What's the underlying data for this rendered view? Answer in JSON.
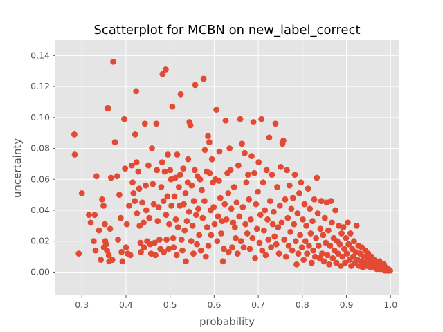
{
  "chart_data": {
    "type": "scatter",
    "title": "Scatterplot for MCBN on new_label_correct",
    "xlabel": "probability",
    "ylabel": "uncertainty",
    "xlim": [
      0.24,
      1.02
    ],
    "ylim": [
      -0.015,
      0.15
    ],
    "xticks": [
      "0.3",
      "0.4",
      "0.5",
      "0.6",
      "0.7",
      "0.8",
      "0.9",
      "1.0"
    ],
    "yticks": [
      "0.00",
      "0.02",
      "0.04",
      "0.06",
      "0.08",
      "0.10",
      "0.12",
      "0.14"
    ],
    "grid": true,
    "background_color": "#e5e5e5",
    "marker_color": "#e24a33",
    "points": [
      [
        0.283,
        0.089
      ],
      [
        0.284,
        0.076
      ],
      [
        0.293,
        0.012
      ],
      [
        0.3,
        0.051
      ],
      [
        0.316,
        0.037
      ],
      [
        0.32,
        0.032
      ],
      [
        0.327,
        0.02
      ],
      [
        0.329,
        0.037
      ],
      [
        0.331,
        0.014
      ],
      [
        0.333,
        0.062
      ],
      [
        0.339,
        0.027
      ],
      [
        0.343,
        0.008
      ],
      [
        0.346,
        0.047
      ],
      [
        0.349,
        0.043
      ],
      [
        0.35,
        0.016
      ],
      [
        0.352,
        0.031
      ],
      [
        0.353,
        0.02
      ],
      [
        0.355,
        0.018
      ],
      [
        0.357,
        0.014
      ],
      [
        0.358,
        0.106
      ],
      [
        0.36,
        0.106
      ],
      [
        0.361,
        0.011
      ],
      [
        0.362,
        0.007
      ],
      [
        0.364,
        0.028
      ],
      [
        0.366,
        0.061
      ],
      [
        0.369,
        0.008
      ],
      [
        0.371,
        0.136
      ],
      [
        0.375,
        0.084
      ],
      [
        0.38,
        0.062
      ],
      [
        0.382,
        0.021
      ],
      [
        0.385,
        0.05
      ],
      [
        0.388,
        0.035
      ],
      [
        0.39,
        0.013
      ],
      [
        0.392,
        0.007
      ],
      [
        0.396,
        0.099
      ],
      [
        0.398,
        0.067
      ],
      [
        0.4,
        0.016
      ],
      [
        0.402,
        0.031
      ],
      [
        0.404,
        0.012
      ],
      [
        0.407,
        0.043
      ],
      [
        0.41,
        0.011
      ],
      [
        0.413,
        0.069
      ],
      [
        0.415,
        0.058
      ],
      [
        0.417,
        0.051
      ],
      [
        0.42,
        0.046
      ],
      [
        0.421,
        0.089
      ],
      [
        0.423,
        0.117
      ],
      [
        0.424,
        0.071
      ],
      [
        0.425,
        0.038
      ],
      [
        0.428,
        0.065
      ],
      [
        0.43,
        0.054
      ],
      [
        0.431,
        0.03
      ],
      [
        0.433,
        0.019
      ],
      [
        0.434,
        0.013
      ],
      [
        0.437,
        0.045
      ],
      [
        0.44,
        0.032
      ],
      [
        0.441,
        0.016
      ],
      [
        0.443,
        0.096
      ],
      [
        0.445,
        0.056
      ],
      [
        0.446,
        0.04
      ],
      [
        0.448,
        0.02
      ],
      [
        0.451,
        0.069
      ],
      [
        0.453,
        0.035
      ],
      [
        0.455,
        0.018
      ],
      [
        0.457,
        0.012
      ],
      [
        0.459,
        0.08
      ],
      [
        0.461,
        0.057
      ],
      [
        0.463,
        0.044
      ],
      [
        0.465,
        0.019
      ],
      [
        0.467,
        0.011
      ],
      [
        0.469,
        0.096
      ],
      [
        0.47,
        0.066
      ],
      [
        0.472,
        0.033
      ],
      [
        0.474,
        0.042
      ],
      [
        0.476,
        0.021
      ],
      [
        0.478,
        0.015
      ],
      [
        0.48,
        0.055
      ],
      [
        0.482,
        0.071
      ],
      [
        0.483,
        0.128
      ],
      [
        0.485,
        0.046
      ],
      [
        0.486,
        0.013
      ],
      [
        0.488,
        0.065
      ],
      [
        0.49,
        0.131
      ],
      [
        0.491,
        0.037
      ],
      [
        0.492,
        0.021
      ],
      [
        0.494,
        0.049
      ],
      [
        0.495,
        0.076
      ],
      [
        0.497,
        0.015
      ],
      [
        0.498,
        0.031
      ],
      [
        0.5,
        0.066
      ],
      [
        0.502,
        0.06
      ],
      [
        0.503,
        0.043
      ],
      [
        0.505,
        0.107
      ],
      [
        0.507,
        0.022
      ],
      [
        0.508,
        0.016
      ],
      [
        0.51,
        0.049
      ],
      [
        0.512,
        0.061
      ],
      [
        0.513,
        0.034
      ],
      [
        0.515,
        0.011
      ],
      [
        0.516,
        0.076
      ],
      [
        0.518,
        0.029
      ],
      [
        0.52,
        0.055
      ],
      [
        0.522,
        0.043
      ],
      [
        0.523,
        0.063
      ],
      [
        0.524,
        0.115
      ],
      [
        0.526,
        0.021
      ],
      [
        0.528,
        0.014
      ],
      [
        0.53,
        0.067
      ],
      [
        0.531,
        0.044
      ],
      [
        0.533,
        0.027
      ],
      [
        0.535,
        0.051
      ],
      [
        0.536,
        0.007
      ],
      [
        0.538,
        0.033
      ],
      [
        0.54,
        0.058
      ],
      [
        0.541,
        0.073
      ],
      [
        0.543,
        0.039
      ],
      [
        0.544,
        0.097
      ],
      [
        0.546,
        0.095
      ],
      [
        0.548,
        0.02
      ],
      [
        0.549,
        0.056
      ],
      [
        0.551,
        0.03
      ],
      [
        0.553,
        0.012
      ],
      [
        0.554,
        0.046
      ],
      [
        0.556,
        0.066
      ],
      [
        0.557,
        0.121
      ],
      [
        0.559,
        0.037
      ],
      [
        0.561,
        0.018
      ],
      [
        0.562,
        0.062
      ],
      [
        0.564,
        0.041
      ],
      [
        0.566,
        0.024
      ],
      [
        0.568,
        0.06
      ],
      [
        0.57,
        0.014
      ],
      [
        0.572,
        0.053
      ],
      [
        0.574,
        0.035
      ],
      [
        0.576,
        0.125
      ],
      [
        0.578,
        0.046
      ],
      [
        0.579,
        0.079
      ],
      [
        0.581,
        0.01
      ],
      [
        0.583,
        0.065
      ],
      [
        0.584,
        0.029
      ],
      [
        0.586,
        0.088
      ],
      [
        0.587,
        0.017
      ],
      [
        0.589,
        0.084
      ],
      [
        0.59,
        0.064
      ],
      [
        0.592,
        0.04
      ],
      [
        0.593,
        0.024
      ],
      [
        0.595,
        0.073
      ],
      [
        0.597,
        0.058
      ],
      [
        0.599,
        0.042
      ],
      [
        0.601,
        0.031
      ],
      [
        0.603,
        0.06
      ],
      [
        0.605,
        0.105
      ],
      [
        0.607,
        0.02
      ],
      [
        0.609,
        0.036
      ],
      [
        0.611,
        0.059
      ],
      [
        0.612,
        0.078
      ],
      [
        0.614,
        0.048
      ],
      [
        0.616,
        0.025
      ],
      [
        0.618,
        0.033
      ],
      [
        0.62,
        0.007
      ],
      [
        0.622,
        0.015
      ],
      [
        0.624,
        0.044
      ],
      [
        0.626,
        0.098
      ],
      [
        0.628,
        0.034
      ],
      [
        0.63,
        0.064
      ],
      [
        0.632,
        0.051
      ],
      [
        0.633,
        0.013
      ],
      [
        0.635,
        0.08
      ],
      [
        0.637,
        0.066
      ],
      [
        0.639,
        0.041
      ],
      [
        0.641,
        0.016
      ],
      [
        0.643,
        0.032
      ],
      [
        0.645,
        0.055
      ],
      [
        0.647,
        0.029
      ],
      [
        0.649,
        0.022
      ],
      [
        0.651,
        0.045
      ],
      [
        0.653,
        0.012
      ],
      [
        0.655,
        0.069
      ],
      [
        0.657,
        0.036
      ],
      [
        0.659,
        0.099
      ],
      [
        0.661,
        0.02
      ],
      [
        0.663,
        0.083
      ],
      [
        0.665,
        0.042
      ],
      [
        0.667,
        0.016
      ],
      [
        0.669,
        0.077
      ],
      [
        0.671,
        0.031
      ],
      [
        0.673,
        0.058
      ],
      [
        0.675,
        0.025
      ],
      [
        0.677,
        0.063
      ],
      [
        0.679,
        0.047
      ],
      [
        0.681,
        0.015
      ],
      [
        0.683,
        0.034
      ],
      [
        0.685,
        0.075
      ],
      [
        0.687,
        0.022
      ],
      [
        0.689,
        0.097
      ],
      [
        0.691,
        0.064
      ],
      [
        0.693,
        0.009
      ],
      [
        0.695,
        0.044
      ],
      [
        0.697,
        0.028
      ],
      [
        0.699,
        0.052
      ],
      [
        0.701,
        0.071
      ],
      [
        0.703,
        0.019
      ],
      [
        0.705,
        0.037
      ],
      [
        0.707,
        0.099
      ],
      [
        0.709,
        0.014
      ],
      [
        0.711,
        0.058
      ],
      [
        0.713,
        0.027
      ],
      [
        0.715,
        0.04
      ],
      [
        0.717,
        0.011
      ],
      [
        0.719,
        0.066
      ],
      [
        0.721,
        0.034
      ],
      [
        0.723,
        0.021
      ],
      [
        0.725,
        0.087
      ],
      [
        0.727,
        0.046
      ],
      [
        0.729,
        0.016
      ],
      [
        0.731,
        0.063
      ],
      [
        0.733,
        0.031
      ],
      [
        0.735,
        0.039
      ],
      [
        0.737,
        0.023
      ],
      [
        0.739,
        0.096
      ],
      [
        0.741,
        0.018
      ],
      [
        0.743,
        0.055
      ],
      [
        0.745,
        0.029
      ],
      [
        0.747,
        0.012
      ],
      [
        0.749,
        0.043
      ],
      [
        0.751,
        0.068
      ],
      [
        0.753,
        0.032
      ],
      [
        0.755,
        0.083
      ],
      [
        0.757,
        0.085
      ],
      [
        0.759,
        0.021
      ],
      [
        0.761,
        0.047
      ],
      [
        0.763,
        0.01
      ],
      [
        0.765,
        0.066
      ],
      [
        0.767,
        0.035
      ],
      [
        0.769,
        0.017
      ],
      [
        0.771,
        0.056
      ],
      [
        0.773,
        0.026
      ],
      [
        0.775,
        0.041
      ],
      [
        0.777,
        0.014
      ],
      [
        0.779,
        0.048
      ],
      [
        0.781,
        0.031
      ],
      [
        0.783,
        0.063
      ],
      [
        0.785,
        0.02
      ],
      [
        0.787,
        0.005
      ],
      [
        0.789,
        0.038
      ],
      [
        0.791,
        0.012
      ],
      [
        0.793,
        0.051
      ],
      [
        0.795,
        0.024
      ],
      [
        0.797,
        0.058
      ],
      [
        0.799,
        0.016
      ],
      [
        0.801,
        0.034
      ],
      [
        0.803,
        0.008
      ],
      [
        0.805,
        0.044
      ],
      [
        0.807,
        0.02
      ],
      [
        0.809,
        0.03
      ],
      [
        0.811,
        0.012
      ],
      [
        0.813,
        0.054
      ],
      [
        0.815,
        0.017
      ],
      [
        0.817,
        0.041
      ],
      [
        0.819,
        0.025
      ],
      [
        0.821,
        0.006
      ],
      [
        0.823,
        0.033
      ],
      [
        0.825,
        0.014
      ],
      [
        0.827,
        0.047
      ],
      [
        0.829,
        0.01
      ],
      [
        0.831,
        0.022
      ],
      [
        0.833,
        0.061
      ],
      [
        0.835,
        0.038
      ],
      [
        0.837,
        0.017
      ],
      [
        0.839,
        0.009
      ],
      [
        0.841,
        0.028
      ],
      [
        0.843,
        0.046
      ],
      [
        0.845,
        0.012
      ],
      [
        0.847,
        0.024
      ],
      [
        0.849,
        0.007
      ],
      [
        0.851,
        0.035
      ],
      [
        0.853,
        0.019
      ],
      [
        0.855,
        0.045
      ],
      [
        0.857,
        0.011
      ],
      [
        0.859,
        0.027
      ],
      [
        0.861,
        0.005
      ],
      [
        0.863,
        0.017
      ],
      [
        0.865,
        0.046
      ],
      [
        0.867,
        0.032
      ],
      [
        0.869,
        0.009
      ],
      [
        0.871,
        0.022
      ],
      [
        0.873,
        0.014
      ],
      [
        0.875,
        0.04
      ],
      [
        0.877,
        0.006
      ],
      [
        0.879,
        0.02
      ],
      [
        0.881,
        0.012
      ],
      [
        0.883,
        0.03
      ],
      [
        0.885,
        0.018
      ],
      [
        0.887,
        0.004
      ],
      [
        0.889,
        0.025
      ],
      [
        0.891,
        0.01
      ],
      [
        0.893,
        0.029
      ],
      [
        0.895,
        0.015
      ],
      [
        0.897,
        0.006
      ],
      [
        0.899,
        0.022
      ],
      [
        0.901,
        0.012
      ],
      [
        0.903,
        0.032
      ],
      [
        0.905,
        0.018
      ],
      [
        0.907,
        0.008
      ],
      [
        0.909,
        0.025
      ],
      [
        0.911,
        0.004
      ],
      [
        0.913,
        0.015
      ],
      [
        0.915,
        0.01
      ],
      [
        0.917,
        0.02
      ],
      [
        0.919,
        0.006
      ],
      [
        0.921,
        0.013
      ],
      [
        0.923,
        0.03
      ],
      [
        0.925,
        0.008
      ],
      [
        0.927,
        0.017
      ],
      [
        0.929,
        0.004
      ],
      [
        0.931,
        0.012
      ],
      [
        0.933,
        0.007
      ],
      [
        0.935,
        0.016
      ],
      [
        0.937,
        0.003
      ],
      [
        0.939,
        0.01
      ],
      [
        0.941,
        0.006
      ],
      [
        0.943,
        0.014
      ],
      [
        0.945,
        0.004
      ],
      [
        0.947,
        0.009
      ],
      [
        0.949,
        0.012
      ],
      [
        0.951,
        0.005
      ],
      [
        0.953,
        0.008
      ],
      [
        0.955,
        0.003
      ],
      [
        0.957,
        0.01
      ],
      [
        0.959,
        0.006
      ],
      [
        0.961,
        0.004
      ],
      [
        0.963,
        0.008
      ],
      [
        0.965,
        0.003
      ],
      [
        0.967,
        0.006
      ],
      [
        0.969,
        0.002
      ],
      [
        0.971,
        0.005
      ],
      [
        0.973,
        0.004
      ],
      [
        0.975,
        0.007
      ],
      [
        0.977,
        0.002
      ],
      [
        0.979,
        0.004
      ],
      [
        0.981,
        0.003
      ],
      [
        0.983,
        0.002
      ],
      [
        0.985,
        0.005
      ],
      [
        0.987,
        0.001
      ],
      [
        0.989,
        0.003
      ],
      [
        0.991,
        0.002
      ],
      [
        0.993,
        0.001
      ],
      [
        0.995,
        0.002
      ],
      [
        0.997,
        0.001
      ],
      [
        0.999,
        0.001
      ]
    ]
  }
}
